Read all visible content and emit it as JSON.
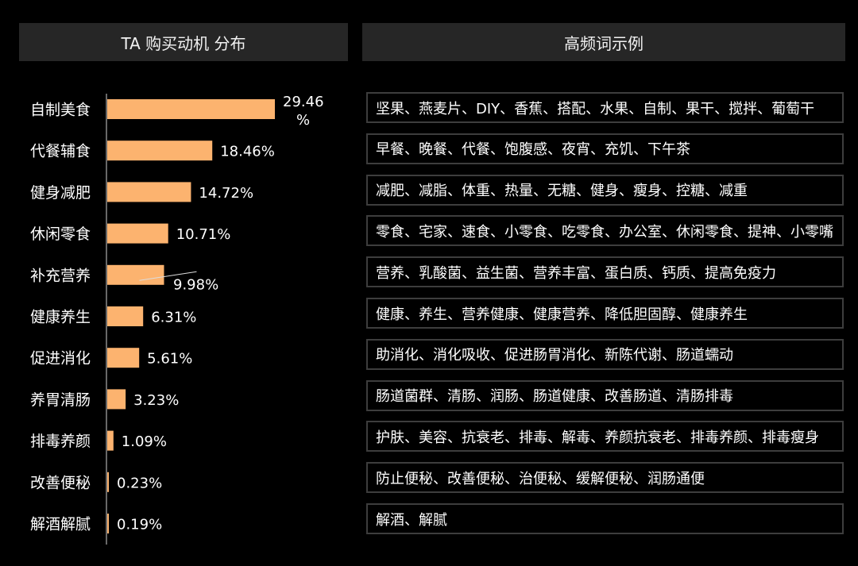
{
  "header_left": "TA 购买动机 分布",
  "header_right": "高频词示例",
  "chart_data": {
    "type": "bar",
    "orientation": "horizontal",
    "title": "TA 购买动机 分布",
    "categories": [
      "自制美食",
      "代餐辅食",
      "健身减肥",
      "休闲零食",
      "补充营养",
      "健康养生",
      "促进消化",
      "养胃清肠",
      "排毒养颜",
      "改善便秘",
      "解酒解腻"
    ],
    "values": [
      29.46,
      18.46,
      14.72,
      10.71,
      9.98,
      6.31,
      5.61,
      3.23,
      1.09,
      0.23,
      0.19
    ],
    "value_labels": [
      "29.46 %",
      "18.46%",
      "14.72%",
      "10.71%",
      "9.98%",
      "6.31%",
      "5.61%",
      "3.23%",
      "1.09%",
      "0.23%",
      "0.19%"
    ],
    "unit": "%",
    "bar_color": "#fcb36f",
    "grid": false
  },
  "keywords": [
    "坚果、燕麦片、DIY、香蕉、搭配、水果、自制、果干、搅拌、葡萄干",
    "早餐、晚餐、代餐、饱腹感、夜宵、充饥、下午茶",
    "减肥、减脂、体重、热量、无糖、健身、瘦身、控糖、减重",
    "零食、宅家、速食、小零食、吃零食、办公室、休闲零食、提神、小零嘴",
    "营养、乳酸菌、益生菌、营养丰富、蛋白质、钙质、提高免疫力",
    "健康、养生、营养健康、健康营养、降低胆固醇、健康养生",
    "助消化、消化吸收、促进肠胃消化、新陈代谢、肠道蠕动",
    "肠道菌群、清肠、润肠、肠道健康、改善肠道、清肠排毒",
    "护肤、美容、抗衰老、排毒、解毒、养颜抗衰老、排毒养颜、排毒瘦身",
    "防止便秘、改善便秘、治便秘、缓解便秘、润肠通便",
    "解酒、解腻"
  ]
}
